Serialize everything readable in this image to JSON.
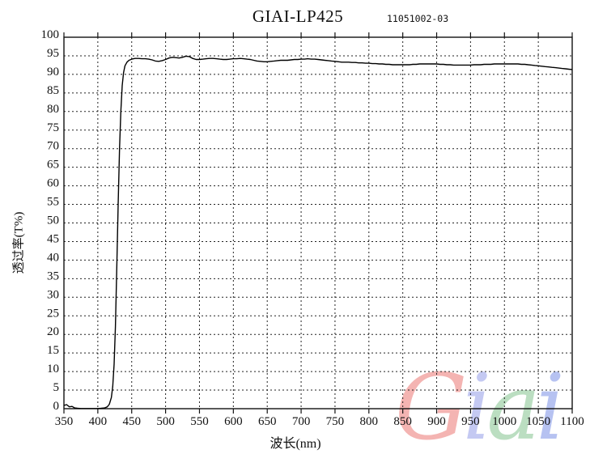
{
  "header": {
    "title": "GIAI-LP425",
    "code": "11051002-03"
  },
  "watermark": {
    "text": "Giai",
    "letters": [
      {
        "char": "G",
        "color": "#f2a2a0"
      },
      {
        "char": "i",
        "color": "#b6bcf0"
      },
      {
        "char": "a",
        "color": "#abd6b2"
      },
      {
        "char": "i",
        "color": "#a4b4ee"
      }
    ]
  },
  "chart_data": {
    "type": "line",
    "title": "GIAI-LP425",
    "annotation": "11051002-03",
    "xlabel": "波长(nm)",
    "ylabel": "透过率(T%)",
    "xlim": [
      350,
      1100
    ],
    "ylim": [
      0,
      100
    ],
    "x_ticks": [
      350,
      400,
      450,
      500,
      550,
      600,
      650,
      700,
      750,
      800,
      850,
      900,
      950,
      1000,
      1050,
      1100
    ],
    "y_ticks": [
      0,
      5,
      10,
      15,
      20,
      25,
      30,
      35,
      40,
      45,
      50,
      55,
      60,
      65,
      70,
      75,
      80,
      85,
      90,
      95,
      100
    ],
    "grid": "dashed",
    "legend": "none",
    "line_color": "#000000",
    "series": [
      {
        "name": "transmittance",
        "points": [
          [
            350,
            0.9
          ],
          [
            354,
            1.1
          ],
          [
            358,
            0.5
          ],
          [
            362,
            0.6
          ],
          [
            366,
            0.2
          ],
          [
            370,
            0.1
          ],
          [
            375,
            0.05
          ],
          [
            380,
            0.05
          ],
          [
            385,
            0.05
          ],
          [
            390,
            0.05
          ],
          [
            395,
            0.05
          ],
          [
            400,
            0.05
          ],
          [
            405,
            0.1
          ],
          [
            410,
            0.2
          ],
          [
            414,
            0.5
          ],
          [
            417,
            1.2
          ],
          [
            420,
            3
          ],
          [
            422,
            6
          ],
          [
            424,
            12
          ],
          [
            426,
            22
          ],
          [
            428,
            38
          ],
          [
            430,
            55
          ],
          [
            432,
            70
          ],
          [
            434,
            80
          ],
          [
            436,
            87
          ],
          [
            438,
            90.5
          ],
          [
            440,
            92.3
          ],
          [
            443,
            93.3
          ],
          [
            446,
            93.8
          ],
          [
            450,
            94.1
          ],
          [
            455,
            94.3
          ],
          [
            460,
            94.3
          ],
          [
            465,
            94.2
          ],
          [
            470,
            94.2
          ],
          [
            475,
            94.1
          ],
          [
            480,
            93.9
          ],
          [
            485,
            93.6
          ],
          [
            490,
            93.5
          ],
          [
            495,
            93.7
          ],
          [
            500,
            94.0
          ],
          [
            505,
            94.4
          ],
          [
            510,
            94.6
          ],
          [
            515,
            94.5
          ],
          [
            520,
            94.4
          ],
          [
            525,
            94.6
          ],
          [
            530,
            94.9
          ],
          [
            535,
            94.8
          ],
          [
            540,
            94.3
          ],
          [
            545,
            94.0
          ],
          [
            550,
            94.0
          ],
          [
            555,
            94.1
          ],
          [
            560,
            94.2
          ],
          [
            565,
            94.3
          ],
          [
            570,
            94.3
          ],
          [
            575,
            94.2
          ],
          [
            580,
            94.1
          ],
          [
            585,
            94.0
          ],
          [
            590,
            94.0
          ],
          [
            595,
            94.1
          ],
          [
            600,
            94.2
          ],
          [
            605,
            94.2
          ],
          [
            610,
            94.3
          ],
          [
            615,
            94.2
          ],
          [
            620,
            94.1
          ],
          [
            625,
            94.0
          ],
          [
            630,
            93.8
          ],
          [
            635,
            93.6
          ],
          [
            640,
            93.5
          ],
          [
            645,
            93.4
          ],
          [
            650,
            93.4
          ],
          [
            655,
            93.5
          ],
          [
            660,
            93.6
          ],
          [
            665,
            93.7
          ],
          [
            670,
            93.8
          ],
          [
            675,
            93.8
          ],
          [
            680,
            93.8
          ],
          [
            685,
            93.9
          ],
          [
            690,
            94.0
          ],
          [
            695,
            94.0
          ],
          [
            700,
            94.1
          ],
          [
            705,
            94.1
          ],
          [
            710,
            94.2
          ],
          [
            715,
            94.1
          ],
          [
            720,
            94.1
          ],
          [
            725,
            94.0
          ],
          [
            730,
            93.9
          ],
          [
            735,
            93.8
          ],
          [
            740,
            93.7
          ],
          [
            745,
            93.6
          ],
          [
            750,
            93.5
          ],
          [
            755,
            93.4
          ],
          [
            760,
            93.3
          ],
          [
            765,
            93.3
          ],
          [
            770,
            93.3
          ],
          [
            775,
            93.2
          ],
          [
            780,
            93.2
          ],
          [
            785,
            93.1
          ],
          [
            790,
            93.1
          ],
          [
            795,
            93.0
          ],
          [
            800,
            93.0
          ],
          [
            805,
            92.9
          ],
          [
            810,
            92.9
          ],
          [
            815,
            92.8
          ],
          [
            820,
            92.8
          ],
          [
            825,
            92.7
          ],
          [
            830,
            92.7
          ],
          [
            835,
            92.6
          ],
          [
            840,
            92.6
          ],
          [
            845,
            92.6
          ],
          [
            850,
            92.6
          ],
          [
            855,
            92.6
          ],
          [
            860,
            92.6
          ],
          [
            865,
            92.7
          ],
          [
            870,
            92.7
          ],
          [
            875,
            92.8
          ],
          [
            880,
            92.8
          ],
          [
            885,
            92.8
          ],
          [
            890,
            92.8
          ],
          [
            895,
            92.8
          ],
          [
            900,
            92.8
          ],
          [
            905,
            92.7
          ],
          [
            910,
            92.7
          ],
          [
            915,
            92.6
          ],
          [
            920,
            92.6
          ],
          [
            925,
            92.5
          ],
          [
            930,
            92.5
          ],
          [
            935,
            92.5
          ],
          [
            940,
            92.5
          ],
          [
            945,
            92.5
          ],
          [
            950,
            92.5
          ],
          [
            955,
            92.6
          ],
          [
            960,
            92.6
          ],
          [
            965,
            92.6
          ],
          [
            970,
            92.7
          ],
          [
            975,
            92.7
          ],
          [
            980,
            92.7
          ],
          [
            985,
            92.8
          ],
          [
            990,
            92.8
          ],
          [
            995,
            92.8
          ],
          [
            1000,
            92.8
          ],
          [
            1005,
            92.8
          ],
          [
            1010,
            92.8
          ],
          [
            1015,
            92.8
          ],
          [
            1020,
            92.8
          ],
          [
            1025,
            92.7
          ],
          [
            1030,
            92.7
          ],
          [
            1035,
            92.6
          ],
          [
            1040,
            92.5
          ],
          [
            1045,
            92.4
          ],
          [
            1050,
            92.3
          ],
          [
            1055,
            92.2
          ],
          [
            1060,
            92.1
          ],
          [
            1065,
            92.0
          ],
          [
            1070,
            91.9
          ],
          [
            1075,
            91.8
          ],
          [
            1080,
            91.7
          ],
          [
            1085,
            91.6
          ],
          [
            1090,
            91.5
          ],
          [
            1095,
            91.4
          ],
          [
            1100,
            91.3
          ]
        ]
      }
    ]
  }
}
